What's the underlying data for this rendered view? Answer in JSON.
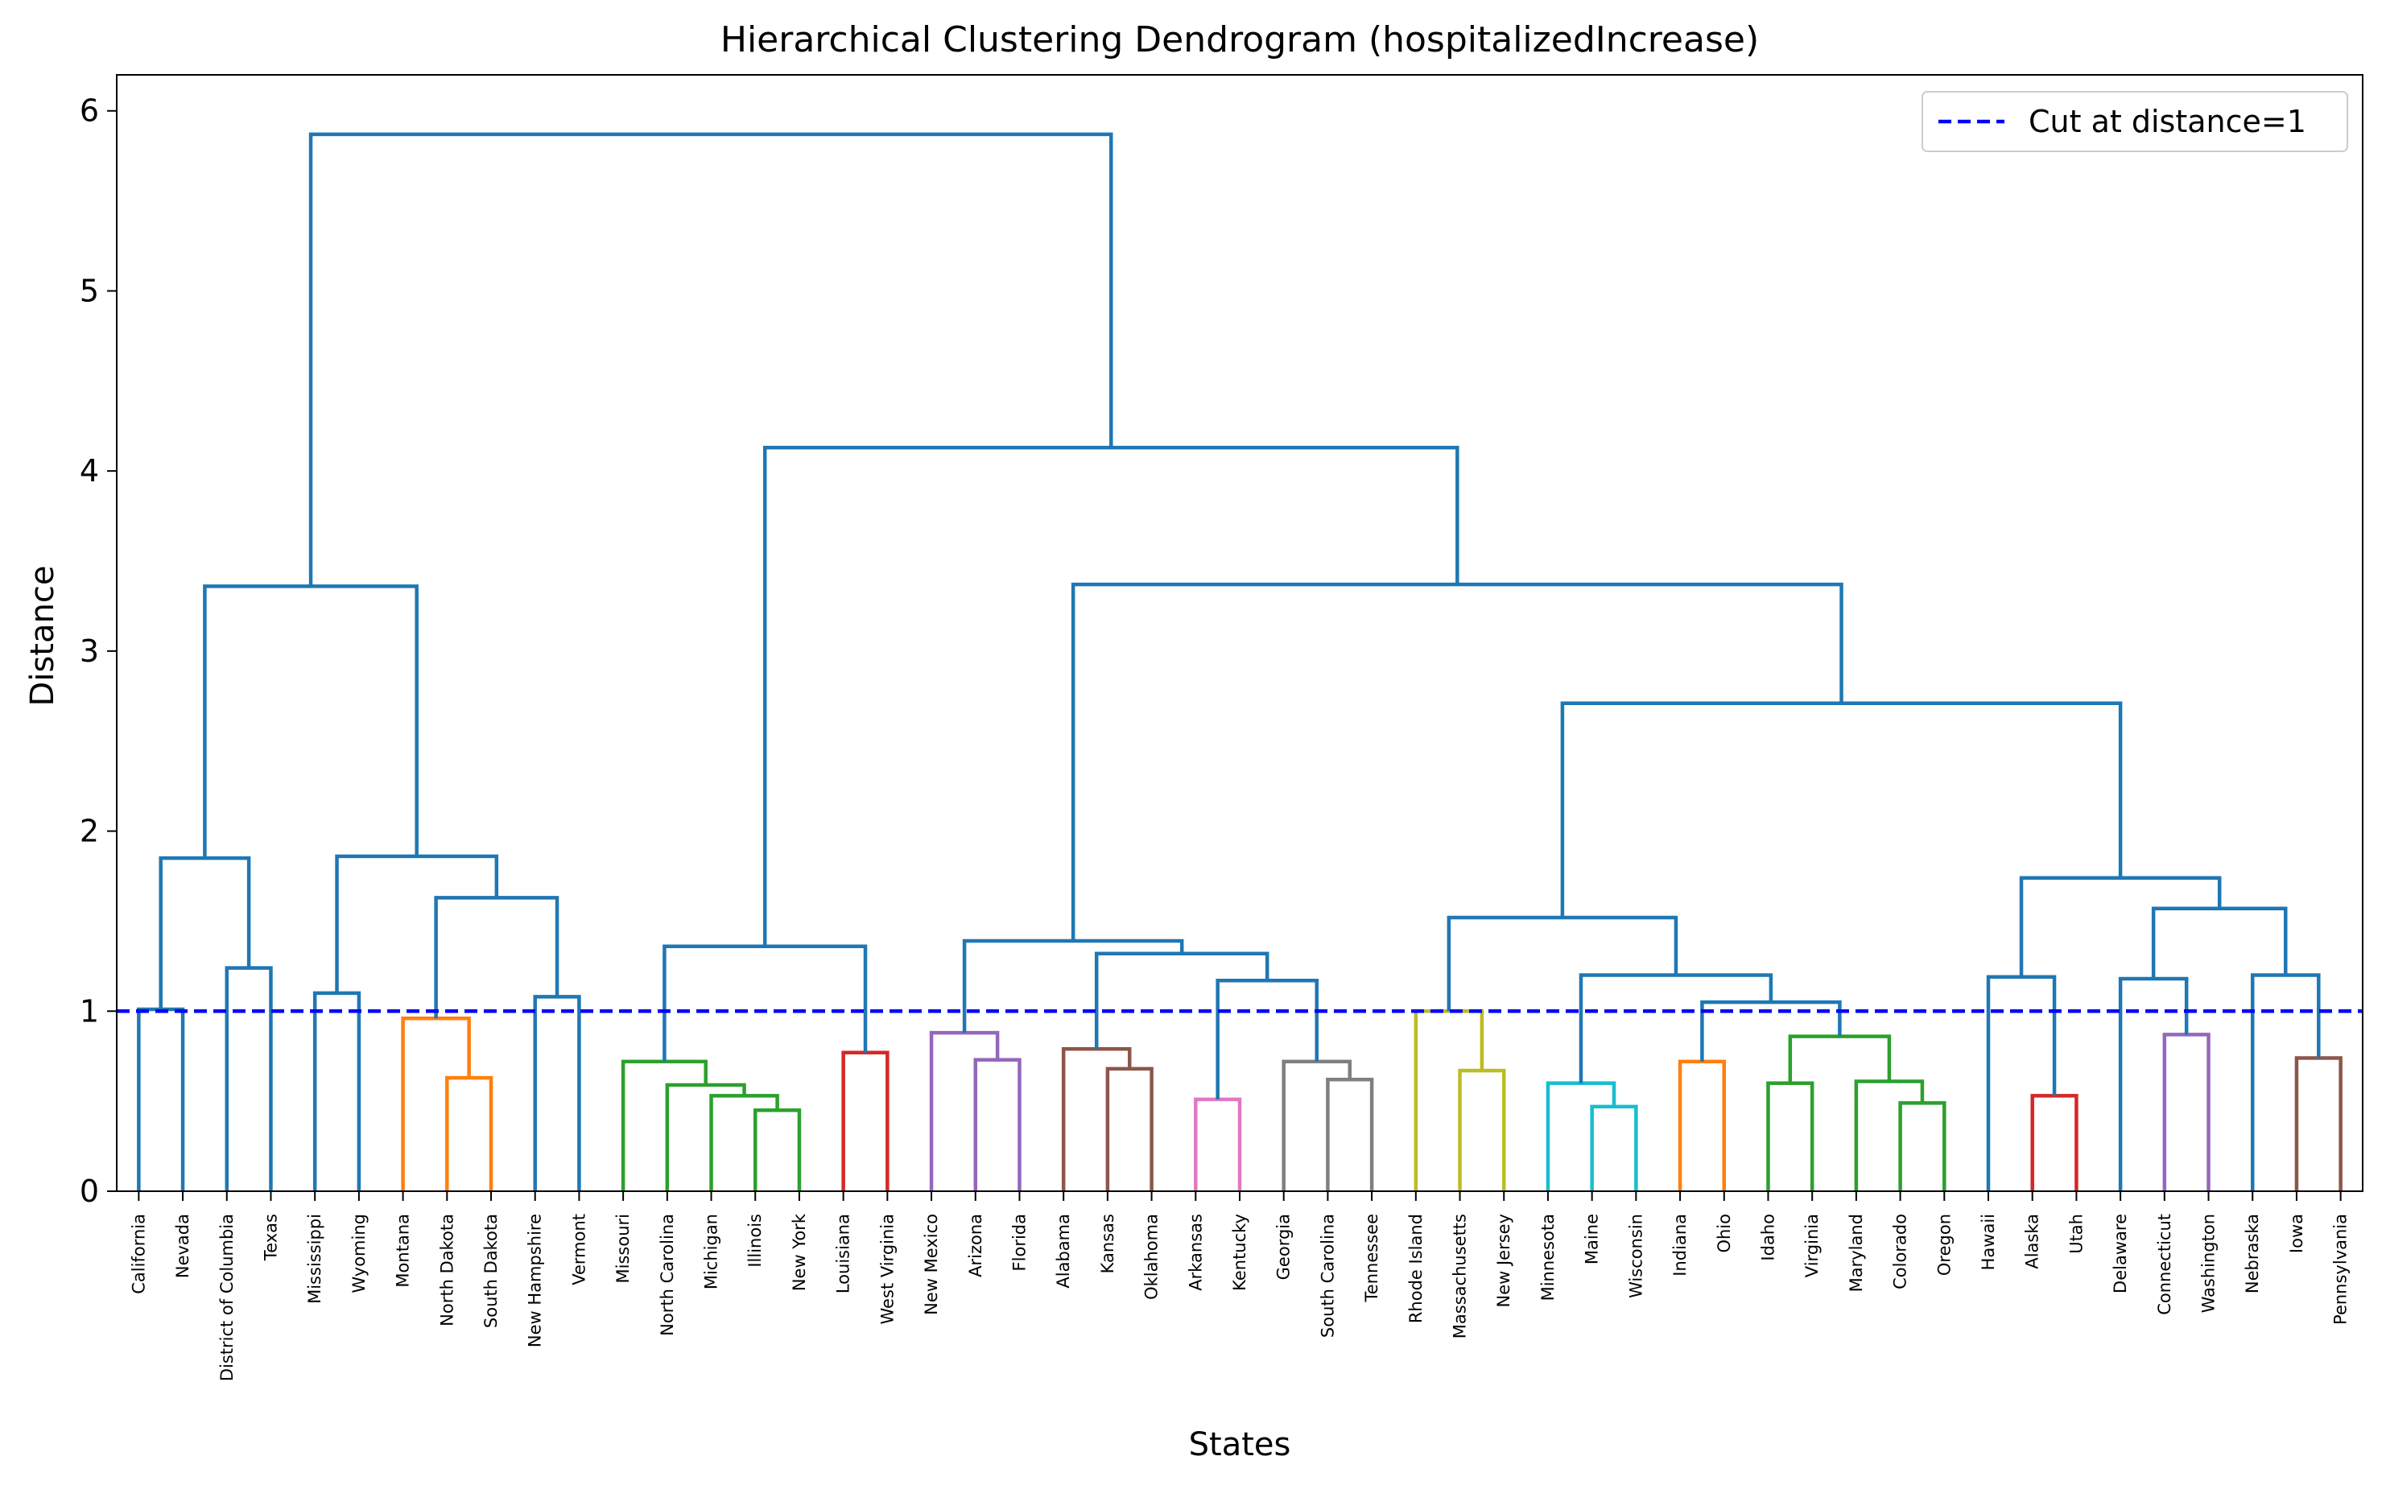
{
  "chart_data": {
    "type": "dendrogram",
    "title": "Hierarchical Clustering Dendrogram (hospitalizedIncrease)",
    "xlabel": "States",
    "ylabel": "Distance",
    "ylim": [
      0,
      6.2
    ],
    "yticks": [
      0,
      1,
      2,
      3,
      4,
      5,
      6
    ],
    "leaves": [
      "California",
      "Nevada",
      "District of Columbia",
      "Texas",
      "Mississippi",
      "Wyoming",
      "Montana",
      "North Dakota",
      "South Dakota",
      "New Hampshire",
      "Vermont",
      "Missouri",
      "North Carolina",
      "Michigan",
      "Illinois",
      "New York",
      "Louisiana",
      "West Virginia",
      "New Mexico",
      "Arizona",
      "Florida",
      "Alabama",
      "Kansas",
      "Oklahoma",
      "Arkansas",
      "Kentucky",
      "Georgia",
      "South Carolina",
      "Tennessee",
      "Rhode Island",
      "Massachusetts",
      "New Jersey",
      "Minnesota",
      "Maine",
      "Wisconsin",
      "Indiana",
      "Ohio",
      "Idaho",
      "Virginia",
      "Maryland",
      "Colorado",
      "Oregon",
      "Hawaii",
      "Alaska",
      "Utah",
      "Delaware",
      "Connecticut",
      "Washington",
      "Nebraska",
      "Iowa",
      "Pennsylvania"
    ],
    "tree": {
      "h": 5.87,
      "c": "#1f77b4",
      "ch": [
        {
          "h": 3.36,
          "c": "#1f77b4",
          "ch": [
            {
              "h": 1.85,
              "c": "#1f77b4",
              "ch": [
                {
                  "h": 1.01,
                  "c": "#1f77b4",
                  "ch": [
                    0,
                    1
                  ]
                },
                {
                  "h": 1.24,
                  "c": "#1f77b4",
                  "ch": [
                    2,
                    3
                  ]
                }
              ]
            },
            {
              "h": 1.86,
              "c": "#1f77b4",
              "ch": [
                {
                  "h": 1.1,
                  "c": "#1f77b4",
                  "ch": [
                    4,
                    5
                  ]
                },
                {
                  "h": 1.63,
                  "c": "#1f77b4",
                  "ch": [
                    {
                      "h": 0.96,
                      "c": "#ff7f0e",
                      "ch": [
                        6,
                        {
                          "h": 0.63,
                          "c": "#ff7f0e",
                          "ch": [
                            7,
                            8
                          ]
                        }
                      ]
                    },
                    {
                      "h": 1.08,
                      "c": "#1f77b4",
                      "ch": [
                        9,
                        10
                      ]
                    }
                  ]
                }
              ]
            }
          ]
        },
        {
          "h": 4.13,
          "c": "#1f77b4",
          "ch": [
            {
              "h": 1.36,
              "c": "#1f77b4",
              "ch": [
                {
                  "h": 0.72,
                  "c": "#2ca02c",
                  "ch": [
                    11,
                    {
                      "h": 0.59,
                      "c": "#2ca02c",
                      "ch": [
                        12,
                        {
                          "h": 0.53,
                          "c": "#2ca02c",
                          "ch": [
                            13,
                            {
                              "h": 0.45,
                              "c": "#2ca02c",
                              "ch": [
                                14,
                                15
                              ]
                            }
                          ]
                        }
                      ]
                    }
                  ]
                },
                {
                  "h": 0.77,
                  "c": "#d62728",
                  "ch": [
                    16,
                    17
                  ]
                }
              ]
            },
            {
              "h": 3.37,
              "c": "#1f77b4",
              "ch": [
                {
                  "h": 1.39,
                  "c": "#1f77b4",
                  "ch": [
                    {
                      "h": 0.88,
                      "c": "#9467bd",
                      "ch": [
                        18,
                        {
                          "h": 0.73,
                          "c": "#9467bd",
                          "ch": [
                            19,
                            20
                          ]
                        }
                      ]
                    },
                    {
                      "h": 1.32,
                      "c": "#1f77b4",
                      "ch": [
                        {
                          "h": 0.79,
                          "c": "#8c564b",
                          "ch": [
                            21,
                            {
                              "h": 0.68,
                              "c": "#8c564b",
                              "ch": [
                                22,
                                23
                              ]
                            }
                          ]
                        },
                        {
                          "h": 1.17,
                          "c": "#1f77b4",
                          "ch": [
                            {
                              "h": 0.51,
                              "c": "#e377c2",
                              "ch": [
                                24,
                                25
                              ]
                            },
                            {
                              "h": 0.72,
                              "c": "#7f7f7f",
                              "ch": [
                                26,
                                {
                                  "h": 0.62,
                                  "c": "#7f7f7f",
                                  "ch": [
                                    27,
                                    28
                                  ]
                                }
                              ]
                            }
                          ]
                        }
                      ]
                    }
                  ]
                },
                {
                  "h": 2.71,
                  "c": "#1f77b4",
                  "ch": [
                    {
                      "h": 1.52,
                      "c": "#1f77b4",
                      "ch": [
                        {
                          "h": 1.0,
                          "c": "#bcbd22",
                          "ch": [
                            29,
                            {
                              "h": 0.67,
                              "c": "#bcbd22",
                              "ch": [
                                30,
                                31
                              ]
                            }
                          ]
                        },
                        {
                          "h": 1.2,
                          "c": "#1f77b4",
                          "ch": [
                            {
                              "h": 0.6,
                              "c": "#17becf",
                              "ch": [
                                32,
                                {
                                  "h": 0.47,
                                  "c": "#17becf",
                                  "ch": [
                                    33,
                                    34
                                  ]
                                }
                              ]
                            },
                            {
                              "h": 1.05,
                              "c": "#1f77b4",
                              "ch": [
                                {
                                  "h": 0.72,
                                  "c": "#ff7f0e",
                                  "ch": [
                                    35,
                                    36
                                  ]
                                },
                                {
                                  "h": 0.86,
                                  "c": "#2ca02c",
                                  "ch": [
                                    {
                                      "h": 0.6,
                                      "c": "#2ca02c",
                                      "ch": [
                                        37,
                                        38
                                      ]
                                    },
                                    {
                                      "h": 0.61,
                                      "c": "#2ca02c",
                                      "ch": [
                                        39,
                                        {
                                          "h": 0.49,
                                          "c": "#2ca02c",
                                          "ch": [
                                            40,
                                            41
                                          ]
                                        }
                                      ]
                                    }
                                  ]
                                }
                              ]
                            }
                          ]
                        }
                      ]
                    },
                    {
                      "h": 1.74,
                      "c": "#1f77b4",
                      "ch": [
                        {
                          "h": 1.19,
                          "c": "#1f77b4",
                          "ch": [
                            42,
                            {
                              "h": 0.53,
                              "c": "#d62728",
                              "ch": [
                                43,
                                44
                              ]
                            }
                          ]
                        },
                        {
                          "h": 1.57,
                          "c": "#1f77b4",
                          "ch": [
                            {
                              "h": 1.18,
                              "c": "#1f77b4",
                              "ch": [
                                45,
                                {
                                  "h": 0.87,
                                  "c": "#9467bd",
                                  "ch": [
                                    46,
                                    47
                                  ]
                                }
                              ]
                            },
                            {
                              "h": 1.2,
                              "c": "#1f77b4",
                              "ch": [
                                48,
                                {
                                  "h": 0.74,
                                  "c": "#8c564b",
                                  "ch": [
                                    49,
                                    50
                                  ]
                                }
                              ]
                            }
                          ]
                        }
                      ]
                    }
                  ]
                }
              ]
            }
          ]
        }
      ]
    },
    "cut": {
      "distance": 1,
      "label": "Cut at distance=1",
      "color": "#0000ff",
      "style": "dashed"
    },
    "legend_position": "upper-right",
    "grid": false
  }
}
